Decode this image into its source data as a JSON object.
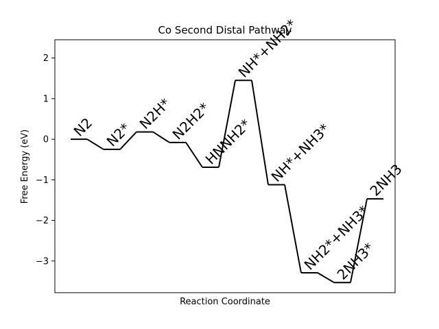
{
  "chart_data": {
    "type": "line",
    "title": "Co Second Distal Pathway",
    "xlabel": "Reaction Coordinate",
    "ylabel": "Free Energy (eV)",
    "ylim": [
      -3.78,
      2.45
    ],
    "yticks": [
      2,
      1,
      0,
      -1,
      -2,
      -3
    ],
    "ytick_labels": [
      "2",
      "1",
      "0",
      "−1",
      "−2",
      "−3"
    ],
    "xticks_shown": false,
    "grid": false,
    "legend": "none",
    "line_color": "#000000",
    "states": [
      {
        "label": "N2",
        "energy": 0.0
      },
      {
        "label": "N2*",
        "energy": -0.25
      },
      {
        "label": "N2H*",
        "energy": 0.18
      },
      {
        "label": "N2H2*",
        "energy": -0.08
      },
      {
        "label": "HNNH2*",
        "energy": -0.69
      },
      {
        "label": "NH*+NH2*",
        "energy": 1.45
      },
      {
        "label": "NH*+NH3*",
        "energy": -1.12
      },
      {
        "label": "NH2*+NH3*",
        "energy": -3.29
      },
      {
        "label": "2NH3*",
        "energy": -3.53
      },
      {
        "label": "2NH3",
        "energy": -1.47
      }
    ]
  }
}
